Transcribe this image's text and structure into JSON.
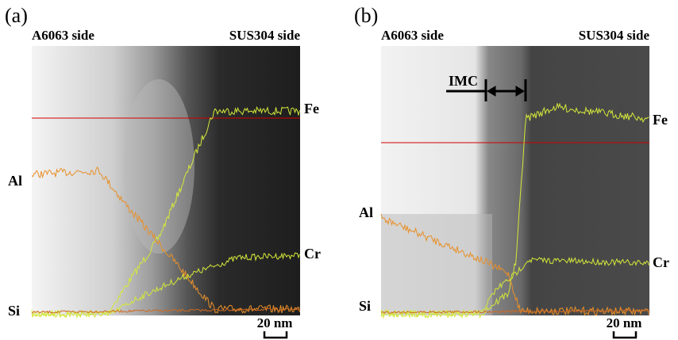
{
  "panels": [
    {
      "label": "(a)",
      "left_side": "A6063 side",
      "right_side": "SUS304 side",
      "elements": [
        "Fe",
        "Al",
        "Cr",
        "Si"
      ],
      "scale_bar": "20 nm"
    },
    {
      "label": "(b)",
      "left_side": "A6063 side",
      "right_side": "SUS304 side",
      "elements": [
        "Fe",
        "Al",
        "Cr",
        "Si"
      ],
      "scale_bar": "20 nm",
      "marker": "IMC"
    }
  ]
}
